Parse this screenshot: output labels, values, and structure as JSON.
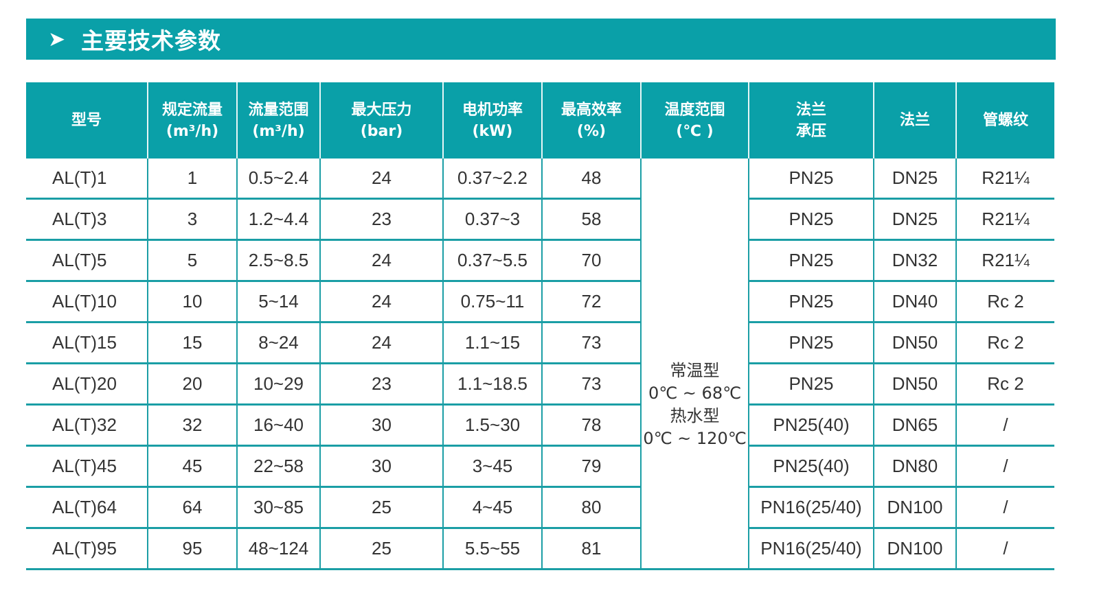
{
  "title": {
    "icon": "chevron-right-icon",
    "text": "主要技术参数"
  },
  "accent_color": "#0aa0a8",
  "headers": [
    [
      "型号"
    ],
    [
      "规定流量",
      "(m³/h)"
    ],
    [
      "流量范围",
      "(m³/h)"
    ],
    [
      "最大压力",
      "(bar)"
    ],
    [
      "电机功率",
      "(kW)"
    ],
    [
      "最高效率",
      "(%)"
    ],
    [
      "温度范围",
      "(℃ )"
    ],
    [
      "法兰",
      "承压"
    ],
    [
      "法兰"
    ],
    [
      "管螺纹"
    ]
  ],
  "temperature": [
    "常温型",
    "0℃ ~ 68℃",
    "热水型",
    "0℃ ~ 120℃"
  ],
  "rows": [
    [
      "AL(T)1",
      "1",
      "0.5~2.4",
      "24",
      "0.37~2.2",
      "48",
      "PN25",
      "DN25",
      "R21¼"
    ],
    [
      "AL(T)3",
      "3",
      "1.2~4.4",
      "23",
      "0.37~3",
      "58",
      "PN25",
      "DN25",
      "R21¼"
    ],
    [
      "AL(T)5",
      "5",
      "2.5~8.5",
      "24",
      "0.37~5.5",
      "70",
      "PN25",
      "DN32",
      "R21¼"
    ],
    [
      "AL(T)10",
      "10",
      "5~14",
      "24",
      "0.75~11",
      "72",
      "PN25",
      "DN40",
      "Rc 2"
    ],
    [
      "AL(T)15",
      "15",
      "8~24",
      "24",
      "1.1~15",
      "73",
      "PN25",
      "DN50",
      "Rc 2"
    ],
    [
      "AL(T)20",
      "20",
      "10~29",
      "23",
      "1.1~18.5",
      "73",
      "PN25",
      "DN50",
      "Rc 2"
    ],
    [
      "AL(T)32",
      "32",
      "16~40",
      "30",
      "1.5~30",
      "78",
      "PN25(40)",
      "DN65",
      "/"
    ],
    [
      "AL(T)45",
      "45",
      "22~58",
      "30",
      "3~45",
      "79",
      "PN25(40)",
      "DN80",
      "/"
    ],
    [
      "AL(T)64",
      "64",
      "30~85",
      "25",
      "4~45",
      "80",
      "PN16(25/40)",
      "DN100",
      "/"
    ],
    [
      "AL(T)95",
      "95",
      "48~124",
      "25",
      "5.5~55",
      "81",
      "PN16(25/40)",
      "DN100",
      "/"
    ]
  ]
}
